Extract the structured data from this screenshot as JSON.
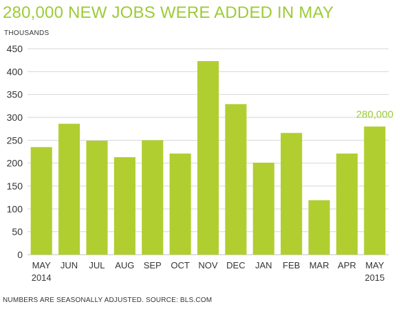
{
  "chart_data": {
    "type": "bar",
    "title": "280,000 NEW JOBS WERE ADDED IN MAY",
    "ylabel": "THOUSANDS",
    "xlabel": "",
    "categories": [
      [
        "MAY",
        "2014"
      ],
      [
        "JUN"
      ],
      [
        "JUL"
      ],
      [
        "AUG"
      ],
      [
        "SEP"
      ],
      [
        "OCT"
      ],
      [
        "NOV"
      ],
      [
        "DEC"
      ],
      [
        "JAN"
      ],
      [
        "FEB"
      ],
      [
        "MAR"
      ],
      [
        "APR"
      ],
      [
        "MAY",
        "2015"
      ]
    ],
    "values": [
      235,
      286,
      249,
      213,
      250,
      221,
      423,
      329,
      201,
      266,
      119,
      221,
      280
    ],
    "ylim": [
      0,
      450
    ],
    "yticks": [
      0,
      50,
      100,
      150,
      200,
      250,
      300,
      350,
      400,
      450
    ],
    "grid": true,
    "bar_color": "#b0ce2f",
    "grid_color": "#d6d6d6",
    "annotation": {
      "text": "280,000",
      "category_index": 12,
      "color": "#9ccb35"
    }
  },
  "footer": "NUMBERS ARE SEASONALLY ADJUSTED. SOURCE: BLS.COM"
}
